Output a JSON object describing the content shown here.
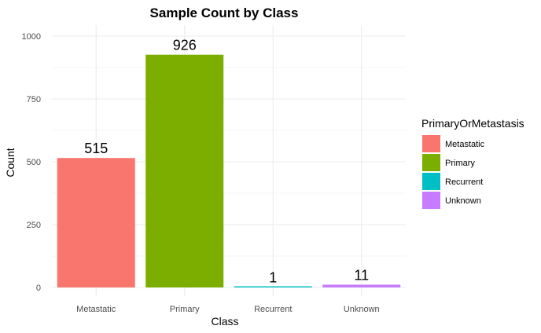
{
  "chart_data": {
    "type": "bar",
    "title": "Sample Count by Class",
    "xlabel": "Class",
    "ylabel": "Count",
    "categories": [
      "Metastatic",
      "Primary",
      "Recurrent",
      "Unknown"
    ],
    "values": [
      515,
      926,
      1,
      11
    ],
    "data_labels": [
      "515",
      "926",
      "1",
      "11"
    ],
    "colors": [
      "#F8766D",
      "#7CAE00",
      "#00BFC4",
      "#C77CFF"
    ],
    "ylim": [
      0,
      1000
    ],
    "yticks": [
      0,
      250,
      500,
      750,
      1000
    ],
    "ytick_labels": [
      "0",
      "250",
      "500",
      "750",
      "1000"
    ],
    "grid": true,
    "legend": {
      "title": "PrimaryOrMetastasis",
      "position": "right",
      "entries": [
        "Metastatic",
        "Primary",
        "Recurrent",
        "Unknown"
      ]
    }
  }
}
